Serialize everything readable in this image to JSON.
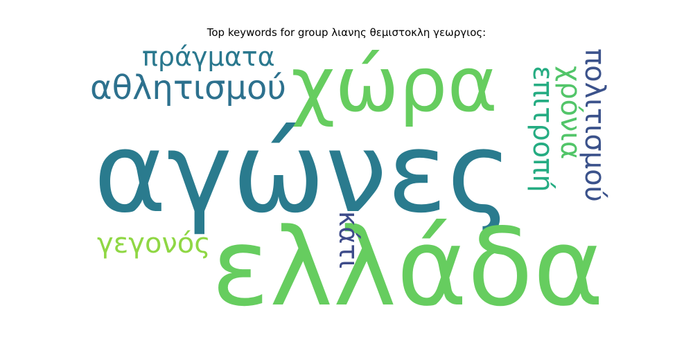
{
  "title": "Top keywords for group λιανης θεμιστοκλη γεωργιος:",
  "words": [
    {
      "text": "αγώνες",
      "color": "#2a7b8e",
      "orientation": "horizontal"
    },
    {
      "text": "ελλάδα",
      "color": "#66cd5f",
      "orientation": "horizontal"
    },
    {
      "text": "χώρα",
      "color": "#66cd5f",
      "orientation": "horizontal"
    },
    {
      "text": "αθλητισμού",
      "color": "#2d718e",
      "orientation": "horizontal"
    },
    {
      "text": "πράγματα",
      "color": "#2a788e",
      "orientation": "horizontal"
    },
    {
      "text": "γεγονός",
      "color": "#8fd744",
      "orientation": "horizontal"
    },
    {
      "text": "επιτροπή",
      "color": "#25ac82",
      "orientation": "vertical"
    },
    {
      "text": "χρόνια",
      "color": "#52c569",
      "orientation": "vertical"
    },
    {
      "text": "πολιτισμού",
      "color": "#3b528b",
      "orientation": "vertical"
    },
    {
      "text": "κάτι",
      "color": "#3e4c8a",
      "orientation": "vertical"
    }
  ]
}
